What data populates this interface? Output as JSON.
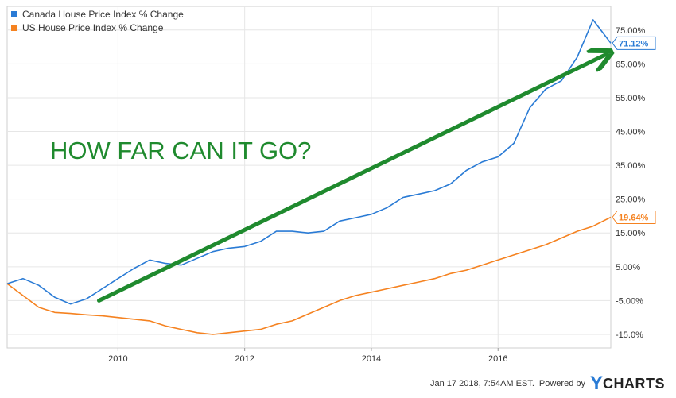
{
  "chart_data": {
    "type": "line",
    "annotation": "HOW FAR CAN IT GO?",
    "x_ticks": [
      "2010",
      "2012",
      "2014",
      "2016"
    ],
    "y_ticks": [
      "75.00%",
      "65.00%",
      "55.00%",
      "45.00%",
      "35.00%",
      "25.00%",
      "15.00%",
      "5.00%",
      "-5.00%",
      "-15.0%"
    ],
    "ylim": [
      -19,
      82
    ],
    "xlim": [
      2008.25,
      2017.78
    ],
    "grid": true,
    "legend_position": "top-left",
    "series": [
      {
        "name": "Canada House Price Index % Change",
        "color": "#2a7bd5",
        "last_value_label": "71.12%",
        "points": [
          [
            2008.25,
            0.0
          ],
          [
            2008.5,
            1.5
          ],
          [
            2008.75,
            -0.5
          ],
          [
            2009.0,
            -4.0
          ],
          [
            2009.25,
            -6.0
          ],
          [
            2009.5,
            -4.5
          ],
          [
            2009.75,
            -1.5
          ],
          [
            2010.0,
            1.5
          ],
          [
            2010.25,
            4.5
          ],
          [
            2010.5,
            7.0
          ],
          [
            2010.75,
            6.0
          ],
          [
            2011.0,
            5.5
          ],
          [
            2011.25,
            7.5
          ],
          [
            2011.5,
            9.5
          ],
          [
            2011.75,
            10.5
          ],
          [
            2012.0,
            11.0
          ],
          [
            2012.25,
            12.5
          ],
          [
            2012.5,
            15.5
          ],
          [
            2012.75,
            15.5
          ],
          [
            2013.0,
            15.0
          ],
          [
            2013.25,
            15.5
          ],
          [
            2013.5,
            18.5
          ],
          [
            2013.75,
            19.5
          ],
          [
            2014.0,
            20.5
          ],
          [
            2014.25,
            22.5
          ],
          [
            2014.5,
            25.5
          ],
          [
            2014.75,
            26.5
          ],
          [
            2015.0,
            27.5
          ],
          [
            2015.25,
            29.5
          ],
          [
            2015.5,
            33.5
          ],
          [
            2015.75,
            36.0
          ],
          [
            2016.0,
            37.5
          ],
          [
            2016.25,
            41.5
          ],
          [
            2016.5,
            52.0
          ],
          [
            2016.75,
            57.5
          ],
          [
            2017.0,
            60.0
          ],
          [
            2017.25,
            67.0
          ],
          [
            2017.5,
            78.0
          ],
          [
            2017.78,
            71.12
          ]
        ]
      },
      {
        "name": "US House Price Index % Change",
        "color": "#f58220",
        "last_value_label": "19.64%",
        "points": [
          [
            2008.25,
            0.0
          ],
          [
            2008.5,
            -3.5
          ],
          [
            2008.75,
            -7.0
          ],
          [
            2009.0,
            -8.5
          ],
          [
            2009.25,
            -8.8
          ],
          [
            2009.5,
            -9.2
          ],
          [
            2009.75,
            -9.5
          ],
          [
            2010.0,
            -10.0
          ],
          [
            2010.25,
            -10.5
          ],
          [
            2010.5,
            -11.0
          ],
          [
            2010.75,
            -12.5
          ],
          [
            2011.0,
            -13.5
          ],
          [
            2011.25,
            -14.5
          ],
          [
            2011.5,
            -15.0
          ],
          [
            2011.75,
            -14.5
          ],
          [
            2012.0,
            -14.0
          ],
          [
            2012.25,
            -13.5
          ],
          [
            2012.5,
            -12.0
          ],
          [
            2012.75,
            -11.0
          ],
          [
            2013.0,
            -9.0
          ],
          [
            2013.25,
            -7.0
          ],
          [
            2013.5,
            -5.0
          ],
          [
            2013.75,
            -3.5
          ],
          [
            2014.0,
            -2.5
          ],
          [
            2014.25,
            -1.5
          ],
          [
            2014.5,
            -0.5
          ],
          [
            2014.75,
            0.5
          ],
          [
            2015.0,
            1.5
          ],
          [
            2015.25,
            3.0
          ],
          [
            2015.5,
            4.0
          ],
          [
            2015.75,
            5.5
          ],
          [
            2016.0,
            7.0
          ],
          [
            2016.25,
            8.5
          ],
          [
            2016.5,
            10.0
          ],
          [
            2016.75,
            11.5
          ],
          [
            2017.0,
            13.5
          ],
          [
            2017.25,
            15.5
          ],
          [
            2017.5,
            17.0
          ],
          [
            2017.78,
            19.64
          ]
        ]
      }
    ],
    "arrow": {
      "color": "#1f8a2e",
      "from": [
        2009.7,
        -5.0
      ],
      "to": [
        2017.78,
        68.5
      ]
    }
  },
  "footer": {
    "timestamp": "Jan 17 2018, 7:54AM EST.",
    "powered_by": "Powered by",
    "brand_y": "Y",
    "brand_rest": "CHARTS"
  }
}
